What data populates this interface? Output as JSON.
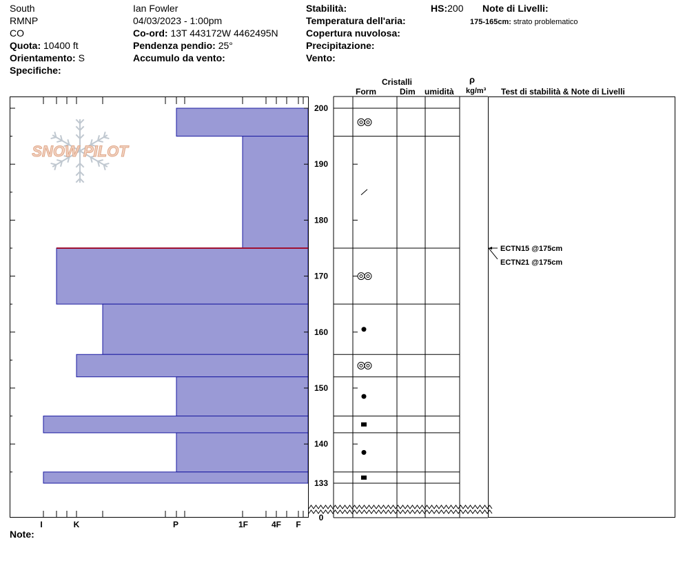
{
  "header": {
    "aspect": "South",
    "area": "RMNP",
    "state": "CO",
    "elevation_label": "Quota:",
    "elevation_value": "10400 ft",
    "orientation_label": "Orientamento:",
    "orientation_value": "S",
    "specifics_label": "Specifiche:",
    "observer": "Ian Fowler",
    "datetime": "04/03/2023 - 1:00pm",
    "coord_label": "Co-ord:",
    "coord_value": "13T 443172W 4462495N",
    "slope_label": "Pendenza pendio:",
    "slope_value": "25°",
    "wind_loading_label": "Accumulo da vento:",
    "stability_label": "Stabilità:",
    "air_temp_label": "Temperatura dell'aria:",
    "cloud_label": "Copertura nuvolosa:",
    "precip_label": "Precipitazione:",
    "wind_label": "Vento:",
    "hs_label": "HS:",
    "hs_value": "200",
    "layer_notes_label": "Note di Livelli:",
    "layer_note_range": "175-165cm:",
    "layer_note_text": "strato problematico"
  },
  "columns": {
    "crystals": "Cristalli",
    "form": "Form",
    "dim": "Dim",
    "moisture": "umidità",
    "rho": "ρ",
    "density_unit": "kg/m³",
    "stability_notes": "Test di stabilità & Note di Livelli"
  },
  "notes_label": "Note:",
  "logo_text": "SNOW PILOT",
  "colors": {
    "layer_fill": "#9a9ad6",
    "layer_stroke": "#1a1aa0",
    "weak_layer": "#a01030",
    "logo": "#e8b79c",
    "snowflake": "#c0c8d0"
  },
  "chart_data": {
    "type": "snow-profile",
    "x_axis": {
      "labels": [
        "I",
        "K",
        "P",
        "1F",
        "4F",
        "F"
      ]
    },
    "y_axis": {
      "ticks": [
        200,
        190,
        180,
        170,
        160,
        150,
        140,
        133,
        0
      ],
      "unit": "cm"
    },
    "layers": [
      {
        "top": 200,
        "bottom": 195,
        "hardness": "P",
        "form": "rounded-polycrystals"
      },
      {
        "top": 195,
        "bottom": 175,
        "hardness": "1F",
        "form": "decomposing-fragments"
      },
      {
        "top": 175,
        "bottom": 165,
        "hardness": "I-",
        "form": "rounded-polycrystals"
      },
      {
        "top": 165,
        "bottom": 156,
        "hardness": "K+",
        "form": "rounded-grains"
      },
      {
        "top": 156,
        "bottom": 152,
        "hardness": "K-",
        "form": "rounded-polycrystals"
      },
      {
        "top": 152,
        "bottom": 145,
        "hardness": "P",
        "form": "rounded-grains"
      },
      {
        "top": 145,
        "bottom": 142,
        "hardness": "I",
        "form": "faceted-crystals"
      },
      {
        "top": 142,
        "bottom": 135,
        "hardness": "P",
        "form": "rounded-grains"
      },
      {
        "top": 135,
        "bottom": 133,
        "hardness": "I",
        "form": "faceted-crystals"
      }
    ],
    "weak_layer_cm": 175,
    "stability_tests": [
      {
        "label": "ECTN15 @175cm",
        "depth": 175
      },
      {
        "label": "ECTN21 @175cm",
        "depth": 175
      }
    ]
  }
}
